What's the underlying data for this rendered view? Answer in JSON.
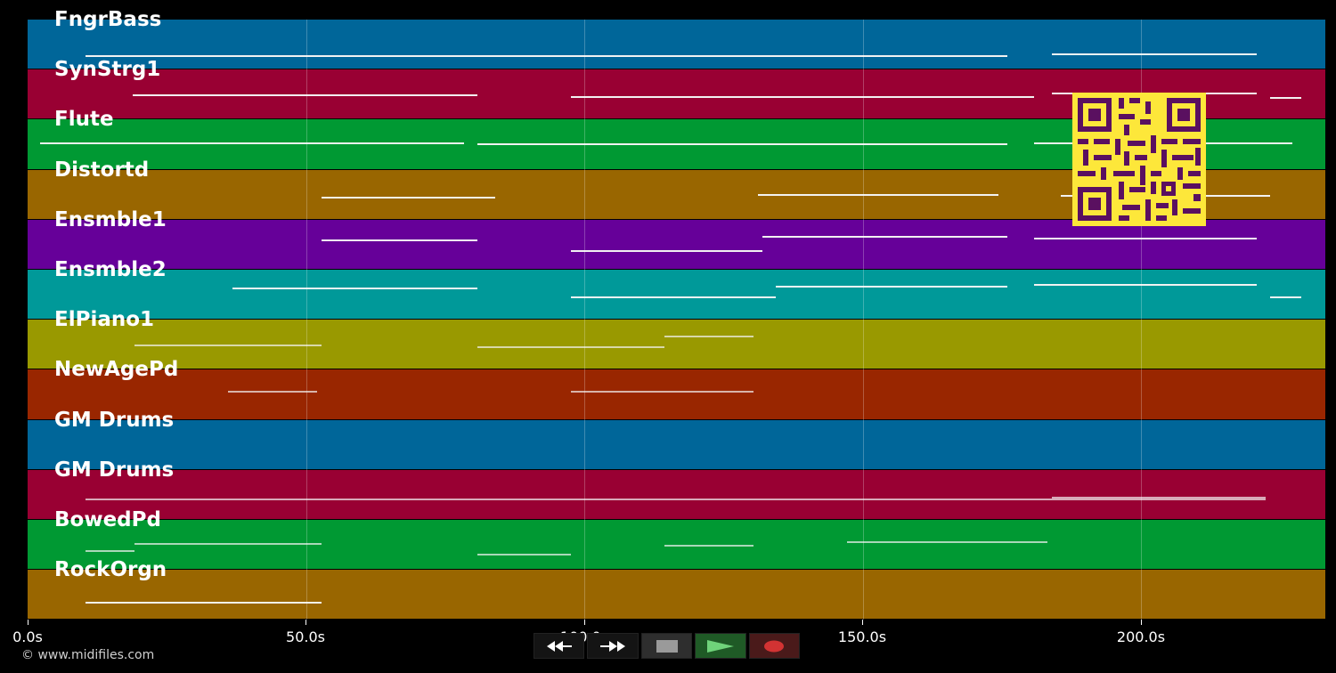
{
  "tracks": [
    {
      "name": "FngrBass",
      "color": "#006699"
    },
    {
      "name": "SynStrg1",
      "color": "#990033"
    },
    {
      "name": "Flute",
      "color": "#009933"
    },
    {
      "name": "Distortd",
      "color": "#996600"
    },
    {
      "name": "Ensmble1",
      "color": "#660099"
    },
    {
      "name": "Ensmble2",
      "color": "#009999"
    },
    {
      "name": "ElPiano1",
      "color": "#999900"
    },
    {
      "name": "NewAgePd",
      "color": "#992600"
    },
    {
      "name": "GM Drums",
      "color": "#006699"
    },
    {
      "name": "GM Drums",
      "color": "#990033"
    },
    {
      "name": "BowedPd",
      "color": "#009933"
    },
    {
      "name": "RockOrgn",
      "color": "#996600"
    }
  ],
  "timeline": {
    "max_seconds": 233,
    "ticks": [
      "0.0s",
      "50.0s",
      "100.0s",
      "150.0s",
      "200.0s"
    ]
  },
  "transport": {
    "rewind_icon": "rewind-icon",
    "forward_icon": "fast-forward-icon",
    "stop_icon": "stop-icon",
    "play_icon": "play-icon",
    "record_icon": "record-icon"
  },
  "copyright": "© www.midifiles.com"
}
